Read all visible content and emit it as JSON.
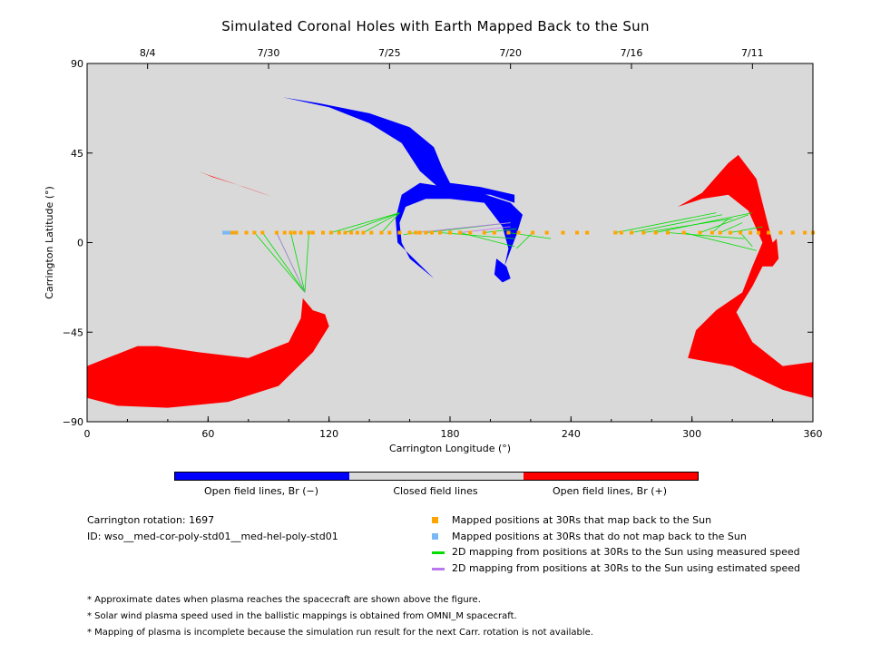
{
  "title": "Simulated Coronal Holes with Earth Mapped Back to the Sun",
  "chart_data": {
    "type": "scatter",
    "title": "Simulated Coronal Holes with Earth Mapped Back to the Sun",
    "xlabel": "Carrington Longitude (°)",
    "ylabel": "Carrington Latitude (°)",
    "xlim": [
      0,
      360
    ],
    "ylim": [
      -90,
      90
    ],
    "x_ticks": [
      "0",
      "60",
      "120",
      "180",
      "240",
      "300",
      "360"
    ],
    "y_ticks": [
      "90",
      "45",
      "0",
      "−45",
      "−90"
    ],
    "top_axis_dates": [
      {
        "label": "8/4",
        "lon": 30
      },
      {
        "label": "7/30",
        "lon": 90
      },
      {
        "label": "7/25",
        "lon": 150
      },
      {
        "label": "7/20",
        "lon": 210
      },
      {
        "label": "7/16",
        "lon": 270
      },
      {
        "label": "7/11",
        "lon": 330
      }
    ],
    "colors": {
      "background": "#d9d9d9",
      "open_negative": "#0000ff",
      "open_positive": "#ff0000",
      "closed": "#d9d9d9",
      "mapped": "#ffa500",
      "not_mapped": "#7ab8f5",
      "measured_line": "#00dd00",
      "estimated_line": "#bb77ee"
    },
    "coronal_holes": [
      {
        "polarity": "negative",
        "points": [
          [
            97,
            73
          ],
          [
            115,
            70
          ],
          [
            140,
            65
          ],
          [
            160,
            58
          ],
          [
            172,
            48
          ],
          [
            176,
            38
          ],
          [
            180,
            30
          ],
          [
            195,
            28
          ],
          [
            212,
            24
          ],
          [
            212,
            20
          ],
          [
            200,
            24
          ],
          [
            182,
            25
          ],
          [
            174,
            28
          ],
          [
            165,
            36
          ],
          [
            156,
            50
          ],
          [
            140,
            60
          ],
          [
            120,
            68
          ]
        ]
      },
      {
        "polarity": "negative",
        "points": [
          [
            156,
            24
          ],
          [
            165,
            30
          ],
          [
            178,
            28
          ],
          [
            195,
            25
          ],
          [
            210,
            20
          ],
          [
            216,
            14
          ],
          [
            213,
            4
          ],
          [
            207,
            -12
          ],
          [
            209,
            -3
          ],
          [
            206,
            8
          ],
          [
            197,
            20
          ],
          [
            180,
            22
          ],
          [
            168,
            22
          ],
          [
            158,
            18
          ],
          [
            155,
            10
          ],
          [
            156,
            0
          ],
          [
            160,
            -8
          ],
          [
            172,
            -18
          ],
          [
            162,
            -8
          ],
          [
            154,
            0
          ],
          [
            153,
            12
          ]
        ]
      },
      {
        "polarity": "negative",
        "points": [
          [
            203,
            -8
          ],
          [
            208,
            -12
          ],
          [
            210,
            -18
          ],
          [
            206,
            -20
          ],
          [
            202,
            -16
          ]
        ]
      },
      {
        "polarity": "positive",
        "points": [
          [
            55,
            36
          ],
          [
            62,
            33
          ],
          [
            78,
            28
          ],
          [
            92,
            23
          ],
          [
            86,
            25
          ],
          [
            72,
            30
          ],
          [
            60,
            34
          ]
        ]
      },
      {
        "polarity": "positive",
        "points": [
          [
            0,
            -62
          ],
          [
            10,
            -58
          ],
          [
            25,
            -52
          ],
          [
            35,
            -52
          ],
          [
            55,
            -55
          ],
          [
            80,
            -58
          ],
          [
            100,
            -50
          ],
          [
            106,
            -38
          ],
          [
            107,
            -28
          ],
          [
            112,
            -34
          ],
          [
            118,
            -36
          ],
          [
            120,
            -42
          ],
          [
            112,
            -55
          ],
          [
            95,
            -72
          ],
          [
            70,
            -80
          ],
          [
            40,
            -83
          ],
          [
            15,
            -82
          ],
          [
            0,
            -78
          ]
        ]
      },
      {
        "polarity": "positive",
        "points": [
          [
            293,
            18
          ],
          [
            305,
            25
          ],
          [
            318,
            40
          ],
          [
            323,
            44
          ],
          [
            332,
            32
          ],
          [
            335,
            20
          ],
          [
            338,
            8
          ],
          [
            340,
            0
          ],
          [
            342,
            2
          ],
          [
            343,
            -8
          ],
          [
            340,
            -12
          ],
          [
            335,
            -12
          ],
          [
            330,
            -22
          ],
          [
            322,
            -35
          ],
          [
            330,
            -50
          ],
          [
            345,
            -62
          ],
          [
            360,
            -60
          ],
          [
            360,
            -78
          ],
          [
            345,
            -74
          ],
          [
            320,
            -62
          ],
          [
            298,
            -58
          ],
          [
            302,
            -44
          ],
          [
            312,
            -34
          ],
          [
            325,
            -25
          ],
          [
            330,
            -12
          ],
          [
            335,
            0
          ],
          [
            328,
            16
          ],
          [
            318,
            24
          ],
          [
            305,
            22
          ]
        ]
      },
      {
        "polarity": "positive",
        "points": [
          [
            334,
            -5
          ],
          [
            339,
            -2
          ],
          [
            341,
            -6
          ],
          [
            338,
            -9
          ]
        ]
      }
    ],
    "mapped_points_30Rs": {
      "lat": 5,
      "mapped_lon": [
        72,
        74,
        79,
        83,
        87,
        94,
        98,
        101,
        103,
        106,
        110,
        112,
        117,
        121,
        125,
        128,
        131,
        134,
        137,
        141,
        146,
        150,
        155,
        160,
        163,
        165,
        168,
        171,
        175,
        180,
        185,
        190,
        197,
        202,
        209,
        214,
        221,
        228,
        236,
        243,
        248,
        262,
        265,
        270,
        276,
        282,
        288,
        296,
        304,
        310,
        314,
        319,
        324,
        329,
        333,
        338,
        344,
        350,
        356,
        360
      ],
      "not_mapped_lon": [
        68,
        69,
        70,
        71,
        73
      ]
    },
    "measured_speed_mapping": [
      {
        "from": [
          83,
          5
        ],
        "to": [
          108,
          -25
        ]
      },
      {
        "from": [
          87,
          5
        ],
        "to": [
          108,
          -25
        ]
      },
      {
        "from": [
          94,
          5
        ],
        "to": [
          108,
          -25
        ]
      },
      {
        "from": [
          101,
          5
        ],
        "to": [
          108,
          -25
        ]
      },
      {
        "from": [
          110,
          5
        ],
        "to": [
          108,
          -25
        ]
      },
      {
        "from": [
          121,
          5
        ],
        "to": [
          155,
          15
        ]
      },
      {
        "from": [
          128,
          5
        ],
        "to": [
          155,
          15
        ]
      },
      {
        "from": [
          137,
          5
        ],
        "to": [
          155,
          15
        ]
      },
      {
        "from": [
          146,
          5
        ],
        "to": [
          155,
          15
        ]
      },
      {
        "from": [
          163,
          5
        ],
        "to": [
          157,
          4
        ]
      },
      {
        "from": [
          168,
          5
        ],
        "to": [
          210,
          10
        ]
      },
      {
        "from": [
          175,
          5
        ],
        "to": [
          212,
          2
        ]
      },
      {
        "from": [
          185,
          5
        ],
        "to": [
          212,
          -2
        ]
      },
      {
        "from": [
          197,
          5
        ],
        "to": [
          213,
          7
        ]
      },
      {
        "from": [
          209,
          5
        ],
        "to": [
          230,
          2
        ]
      },
      {
        "from": [
          221,
          5
        ],
        "to": [
          213,
          -3
        ]
      },
      {
        "from": [
          262,
          5
        ],
        "to": [
          312,
          15
        ]
      },
      {
        "from": [
          270,
          5
        ],
        "to": [
          315,
          14
        ]
      },
      {
        "from": [
          276,
          5
        ],
        "to": [
          320,
          12
        ]
      },
      {
        "from": [
          282,
          5
        ],
        "to": [
          330,
          15
        ]
      },
      {
        "from": [
          288,
          5
        ],
        "to": [
          326,
          2
        ]
      },
      {
        "from": [
          296,
          5
        ],
        "to": [
          332,
          -4
        ]
      },
      {
        "from": [
          304,
          5
        ],
        "to": [
          328,
          14
        ]
      },
      {
        "from": [
          310,
          5
        ],
        "to": [
          318,
          12
        ]
      },
      {
        "from": [
          314,
          5
        ],
        "to": [
          325,
          10
        ]
      },
      {
        "from": [
          319,
          5
        ],
        "to": [
          335,
          8
        ]
      },
      {
        "from": [
          324,
          5
        ],
        "to": [
          330,
          -2
        ]
      }
    ],
    "estimated_speed_mapping": [
      {
        "from": [
          94,
          5
        ],
        "to": [
          108,
          -25
        ]
      },
      {
        "from": [
          163,
          5
        ],
        "to": [
          210,
          10
        ]
      },
      {
        "from": [
          185,
          5
        ],
        "to": [
          210,
          8
        ]
      }
    ]
  },
  "colorbar": {
    "neg_label": "Open field lines, Br (−)",
    "closed_label": "Closed field lines",
    "pos_label": "Open field lines, Br (+)"
  },
  "info": {
    "rotation": "Carrington rotation: 1697",
    "id": "ID: wso__med-cor-poly-std01__med-hel-poly-std01"
  },
  "legend": {
    "mapped": "Mapped positions at 30Rs that map back to the Sun",
    "not_mapped": "Mapped positions at 30Rs that do not map back to the Sun",
    "measured": "2D mapping from positions at 30Rs to the Sun using measured speed",
    "estimated": "2D mapping from positions at 30Rs to the Sun using estimated speed"
  },
  "notes": [
    "* Approximate dates when plasma reaches the spacecraft are shown above the figure.",
    "* Solar wind plasma speed used in the ballistic mappings is obtained from OMNI_M spacecraft.",
    "* Mapping of plasma is incomplete because the simulation run result for the next Carr. rotation is not available."
  ]
}
